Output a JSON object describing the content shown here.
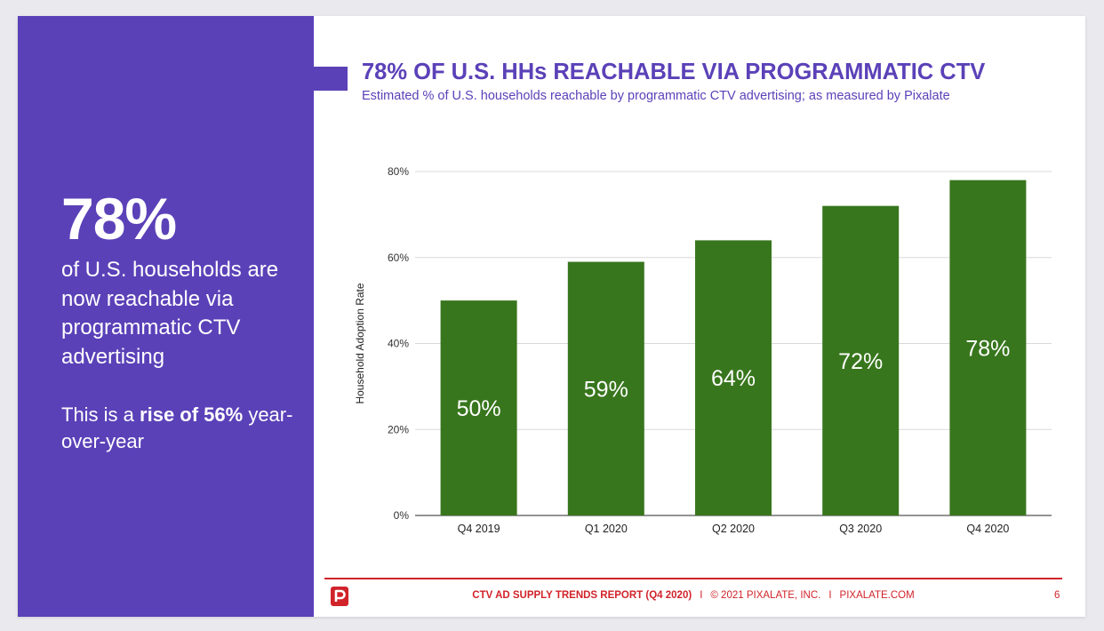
{
  "left_panel": {
    "big_stat": "78%",
    "stat_description": "of U.S. households are now reachable via programmatic CTV advertising",
    "rise_prefix": "This is a ",
    "rise_bold": "rise of 56%",
    "rise_suffix": " year-over-year"
  },
  "colors": {
    "panel_purple": "#5b41b8",
    "bar_green": "#38761d",
    "footer_red": "#d1232a"
  },
  "chart_data": {
    "type": "bar",
    "title": "78% OF U.S. HHs REACHABLE VIA PROGRAMMATIC CTV",
    "subtitle": "Estimated % of U.S. households reachable by programmatic CTV advertising; as measured by Pixalate",
    "xlabel": "",
    "ylabel": "Household Adoption Rate",
    "categories": [
      "Q4 2019",
      "Q1 2020",
      "Q2 2020",
      "Q3 2020",
      "Q4 2020"
    ],
    "values": [
      50,
      59,
      64,
      72,
      78
    ],
    "data_labels": [
      "50%",
      "59%",
      "64%",
      "72%",
      "78%"
    ],
    "ylim": [
      0,
      80
    ],
    "yticks": [
      0,
      20,
      40,
      60,
      80
    ],
    "ytick_labels": [
      "0%",
      "20%",
      "40%",
      "60%",
      "80%"
    ],
    "grid": true,
    "legend": "none"
  },
  "footer": {
    "logo_icon": "pixalate-p-logo-icon",
    "report": "CTV AD SUPPLY TRENDS REPORT (Q4 2020)",
    "separator": "I",
    "copyright": "© 2021 PIXALATE, INC.",
    "website": "PIXALATE.COM",
    "page_number": "6"
  }
}
